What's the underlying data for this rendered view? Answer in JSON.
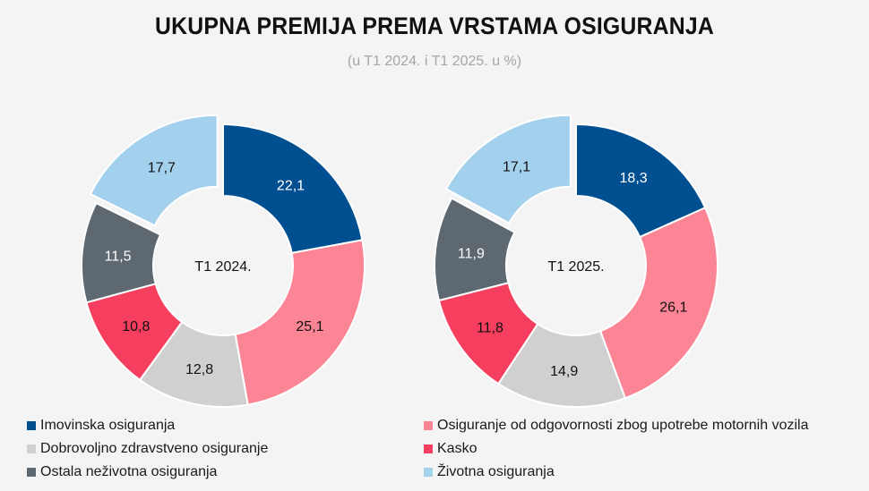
{
  "title": "UKUPNA PREMIJA PREMA VRSTAMA OSIGURANJA",
  "subtitle": "(u T1 2024. i T1 2025. u %)",
  "categories": [
    {
      "name": "Imovinska osiguranja",
      "color": "#004f91"
    },
    {
      "name": "Osiguranje od odgovornosti zbog upotrebe motornih vozila",
      "color": "#fb8595"
    },
    {
      "name": "Dobrovoljno zdravstveno osiguranje",
      "color": "#d0d0d0"
    },
    {
      "name": "Kasko",
      "color": "#f63f5f"
    },
    {
      "name": "Ostala neživotna osiguranja",
      "color": "#5e6870"
    },
    {
      "name": "Životna osiguranja",
      "color": "#a3d0ed"
    }
  ],
  "chart_data": [
    {
      "type": "pie",
      "center_label": "T1 2024.",
      "categories": [
        "Imovinska osiguranja",
        "Osiguranje od odgovornosti zbog upotrebe motornih vozila",
        "Dobrovoljno zdravstveno osiguranje",
        "Kasko",
        "Ostala neživotna osiguranja",
        "Životna osiguranja"
      ],
      "values": [
        22.1,
        25.1,
        12.8,
        10.8,
        11.5,
        17.7
      ],
      "labels": [
        "22,1",
        "25,1",
        "12,8",
        "10,8",
        "11,5",
        "17,7"
      ],
      "exploded": "Životna osiguranja",
      "legend": "bottom"
    },
    {
      "type": "pie",
      "center_label": "T1 2025.",
      "categories": [
        "Imovinska osiguranja",
        "Osiguranje od odgovornosti zbog upotrebe motornih vozila",
        "Dobrovoljno zdravstveno osiguranje",
        "Kasko",
        "Ostala neživotna osiguranja",
        "Životna osiguranja"
      ],
      "values": [
        18.3,
        26.1,
        14.9,
        11.8,
        11.9,
        17.1
      ],
      "labels": [
        "18,3",
        "26,1",
        "14,9",
        "11,8",
        "11,9",
        "17,1"
      ],
      "exploded": "Životna osiguranja",
      "legend": "bottom"
    }
  ]
}
